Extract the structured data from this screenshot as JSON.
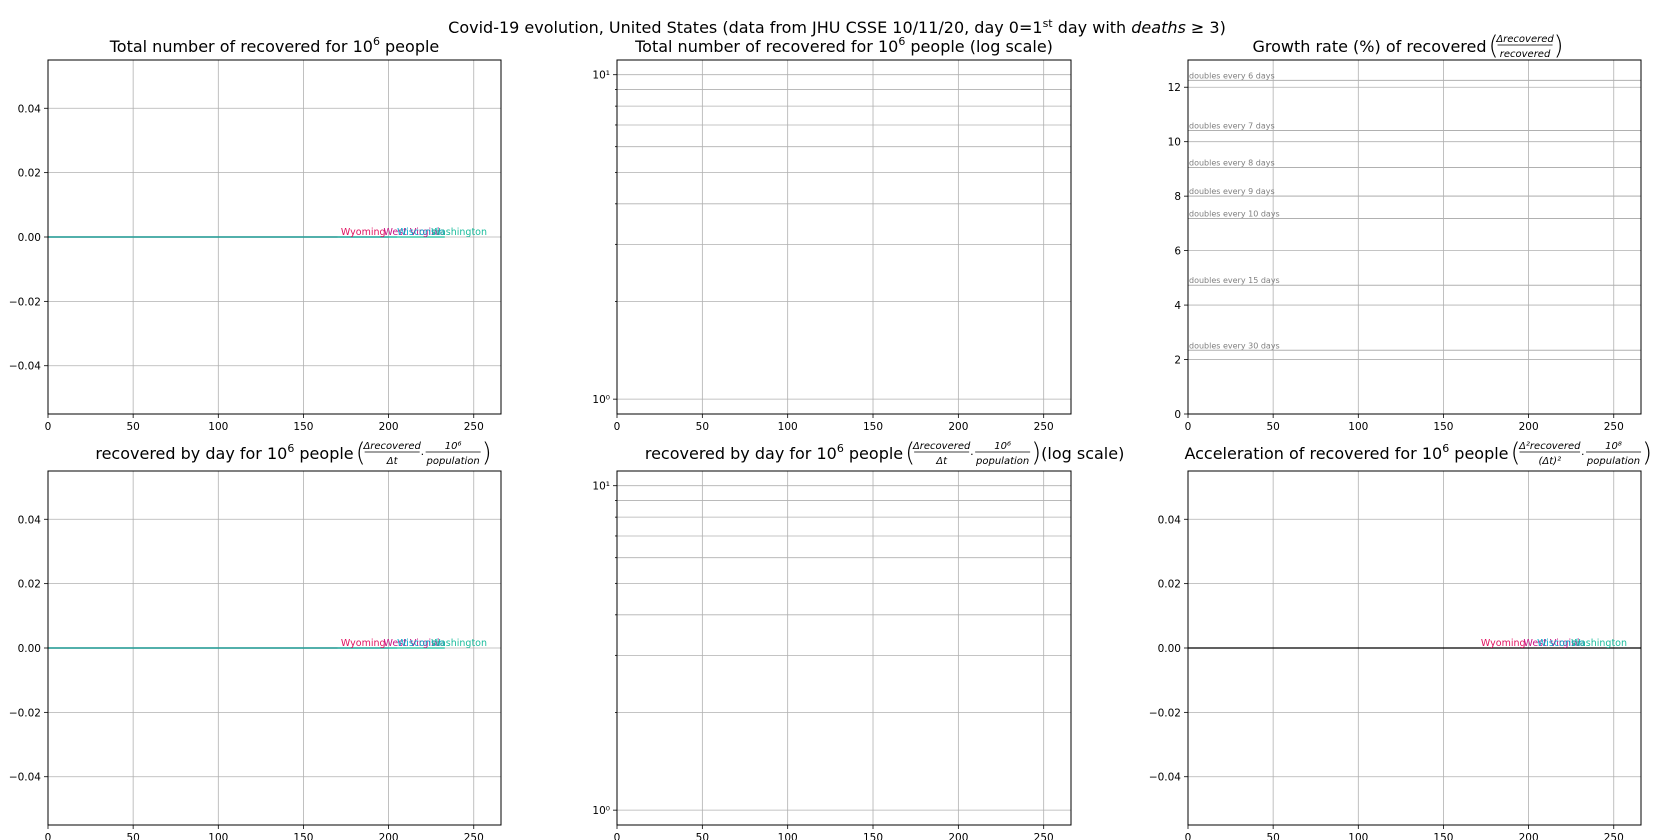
{
  "suptitle": "Covid-19 evolution, United States (data from JHU CSSE 10/11/20, day 0=1st day with deaths ≥ 3)",
  "suptitle_parts": {
    "pre": "Covid-19 evolution, United States (data from JHU CSSE 10/11/20, day 0=1",
    "sup": "st",
    "mid": " day with ",
    "italic": "deaths",
    "post": " ≥ 3)"
  },
  "colors": {
    "grid": "#b0b0b0",
    "axis": "#000000",
    "annotation": "#808080",
    "wyoming": "#e0115f",
    "west_virginia": "#c71585",
    "wisconsin": "#00aacc",
    "washington": "#1abc9c"
  },
  "chart_data": [
    {
      "id": "total",
      "type": "line",
      "title": "Total number of recovered for 10⁶ people",
      "xlabel": "",
      "ylabel": "",
      "xlim": [
        0,
        266
      ],
      "ylim": [
        -0.055,
        0.055
      ],
      "xticks": [
        0,
        50,
        100,
        150,
        200,
        250
      ],
      "yticks": [
        -0.04,
        -0.02,
        0.0,
        0.02,
        0.04
      ],
      "ytick_labels": [
        "−0.04",
        "−0.02",
        "0.00",
        "0.02",
        "0.04"
      ],
      "grid": true,
      "series": [
        {
          "name": "Wyoming",
          "color": "#e0115f",
          "x": [
            0,
            170
          ],
          "values": [
            0,
            0
          ]
        },
        {
          "name": "West Virginia",
          "color": "#c71585",
          "x": [
            0,
            200
          ],
          "values": [
            0,
            0
          ]
        },
        {
          "name": "Wisconsin",
          "color": "#00aacc",
          "x": [
            0,
            205
          ],
          "values": [
            0,
            0
          ]
        },
        {
          "name": "Washington",
          "color": "#1abc9c",
          "x": [
            0,
            233
          ],
          "values": [
            0,
            0
          ]
        }
      ],
      "labels": [
        {
          "text": "Wyoming",
          "x": 172,
          "y": 0,
          "color": "#e0115f"
        },
        {
          "text": "West Virginia",
          "x": 197,
          "y": 0,
          "color": "#c71585"
        },
        {
          "text": "Wisconsin",
          "x": 205,
          "y": 0,
          "color": "#00aacc"
        },
        {
          "text": "Washington",
          "x": 225,
          "y": 0,
          "color": "#1abc9c"
        }
      ]
    },
    {
      "id": "total_log",
      "type": "line",
      "title": "Total number of recovered for 10⁶ people (log scale)",
      "xlabel": "",
      "ylabel": "",
      "xlim": [
        0,
        266
      ],
      "ylim": [
        0.9,
        11.1
      ],
      "yscale": "log",
      "xticks": [
        0,
        50,
        100,
        150,
        200,
        250
      ],
      "yticks_major": [
        1,
        10
      ],
      "yticks_minor": [
        2,
        3,
        4,
        5,
        6,
        7,
        8,
        9
      ],
      "ytick_labels": [
        "10⁰",
        "10¹"
      ],
      "grid": true,
      "series": []
    },
    {
      "id": "growth",
      "type": "line",
      "title": "Growth rate (%) of recovered (Δrecovered / recovered)",
      "xlabel": "",
      "ylabel": "",
      "xlim": [
        0,
        266
      ],
      "ylim": [
        0,
        13
      ],
      "xticks": [
        0,
        50,
        100,
        150,
        200,
        250
      ],
      "yticks": [
        0,
        2,
        4,
        6,
        8,
        10,
        12
      ],
      "grid": true,
      "hlines": [
        {
          "y": 12.25,
          "text": "doubles every 6 days"
        },
        {
          "y": 10.41,
          "text": "doubles every 7 days"
        },
        {
          "y": 9.05,
          "text": "doubles every 8 days"
        },
        {
          "y": 8.0,
          "text": "doubles every 9 days"
        },
        {
          "y": 7.18,
          "text": "doubles every 10 days"
        },
        {
          "y": 4.73,
          "text": "doubles every 15 days"
        },
        {
          "y": 2.34,
          "text": "doubles every 30 days"
        }
      ],
      "series": []
    },
    {
      "id": "daily",
      "type": "line",
      "title": "recovered by day for 10⁶ people (Δrecovered/Δt · 10⁶/population)",
      "xlabel": "",
      "ylabel": "",
      "xlim": [
        0,
        266
      ],
      "ylim": [
        -0.055,
        0.055
      ],
      "xticks": [
        0,
        50,
        100,
        150,
        200,
        250
      ],
      "yticks": [
        -0.04,
        -0.02,
        0.0,
        0.02,
        0.04
      ],
      "ytick_labels": [
        "−0.04",
        "−0.02",
        "0.00",
        "0.02",
        "0.04"
      ],
      "grid": true,
      "series": [
        {
          "name": "Wyoming",
          "color": "#e0115f",
          "x": [
            0,
            170
          ],
          "values": [
            0,
            0
          ]
        },
        {
          "name": "West Virginia",
          "color": "#c71585",
          "x": [
            0,
            200
          ],
          "values": [
            0,
            0
          ]
        },
        {
          "name": "Wisconsin",
          "color": "#00aacc",
          "x": [
            0,
            205
          ],
          "values": [
            0,
            0
          ]
        },
        {
          "name": "Washington",
          "color": "#1abc9c",
          "x": [
            0,
            233
          ],
          "values": [
            0,
            0
          ]
        }
      ],
      "labels": [
        {
          "text": "Wyoming",
          "x": 172,
          "y": 0,
          "color": "#e0115f"
        },
        {
          "text": "West Virginia",
          "x": 197,
          "y": 0,
          "color": "#c71585"
        },
        {
          "text": "Wisconsin",
          "x": 205,
          "y": 0,
          "color": "#00aacc"
        },
        {
          "text": "Washington",
          "x": 225,
          "y": 0,
          "color": "#1abc9c"
        }
      ]
    },
    {
      "id": "daily_log",
      "type": "line",
      "title": "recovered by day for 10⁶ people (Δrecovered/Δt · 10⁶/population) (log scale)",
      "xlabel": "",
      "ylabel": "",
      "xlim": [
        0,
        266
      ],
      "ylim": [
        0.9,
        11.1
      ],
      "yscale": "log",
      "xticks": [
        0,
        50,
        100,
        150,
        200,
        250
      ],
      "yticks_major": [
        1,
        10
      ],
      "yticks_minor": [
        2,
        3,
        4,
        5,
        6,
        7,
        8,
        9
      ],
      "ytick_labels": [
        "10⁰",
        "10¹"
      ],
      "grid": true,
      "series": []
    },
    {
      "id": "accel",
      "type": "line",
      "title": "Acceleration of recovered for 10⁶ people (Δ²recovered/(Δt)² · 10⁶/population)",
      "xlabel": "",
      "ylabel": "",
      "xlim": [
        0,
        266
      ],
      "ylim": [
        -0.055,
        0.055
      ],
      "xticks": [
        0,
        50,
        100,
        150,
        200,
        250
      ],
      "yticks": [
        -0.04,
        -0.02,
        0.0,
        0.02,
        0.04
      ],
      "ytick_labels": [
        "−0.04",
        "−0.02",
        "0.00",
        "0.02",
        "0.04"
      ],
      "grid": true,
      "series": [
        {
          "name": "United States",
          "color": "#000000",
          "x": [
            0,
            266
          ],
          "values": [
            0,
            0
          ]
        }
      ],
      "labels": [
        {
          "text": "Wyoming",
          "x": 172,
          "y": 0,
          "color": "#e0115f"
        },
        {
          "text": "West Virginia",
          "x": 197,
          "y": 0,
          "color": "#c71585"
        },
        {
          "text": "Wisconsin",
          "x": 205,
          "y": 0,
          "color": "#00aacc"
        },
        {
          "text": "Washington",
          "x": 225,
          "y": 0,
          "color": "#1abc9c"
        }
      ]
    }
  ]
}
